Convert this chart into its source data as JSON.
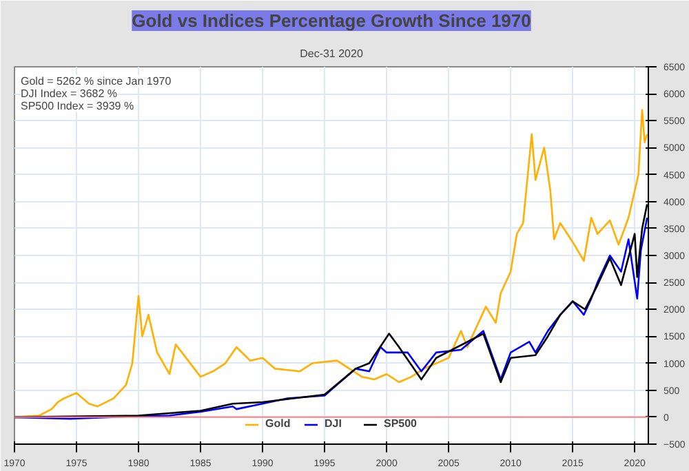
{
  "chart_data": {
    "type": "line",
    "title": "Gold vs Indices Percentage Growth Since 1970",
    "subtitle": "Dec-31 2020",
    "annotations": [
      "Gold = 5262 % since Jan 1970",
      "DJI Index = 3682 %",
      "SP500 Index = 3939 %"
    ],
    "xlim": [
      1970,
      2021.1
    ],
    "xticks": [
      1970,
      1975,
      1980,
      1985,
      1990,
      1995,
      2000,
      2005,
      2010,
      2015,
      2020
    ],
    "ylim": [
      -500,
      6500
    ],
    "yticks": [
      -500,
      0,
      500,
      1000,
      1500,
      2000,
      2500,
      3000,
      3500,
      4000,
      4500,
      5000,
      5500,
      6000,
      6500
    ],
    "grid": true,
    "legend": "bottom",
    "ref_lines": [
      {
        "axis": "y",
        "value": 0,
        "color": "#ff8080"
      }
    ],
    "series": [
      {
        "name": "Gold",
        "color": "#ffb000",
        "x": [
          1970,
          1972,
          1973,
          1973.5,
          1974,
          1975,
          1976,
          1976.7,
          1978,
          1979,
          1979.5,
          1980.0,
          1980.3,
          1980.8,
          1981.5,
          1982.5,
          1983,
          1984,
          1985,
          1986,
          1987,
          1987.9,
          1989,
          1990,
          1991,
          1993,
          1994,
          1996,
          1997,
          1998,
          1999,
          2000,
          2001,
          2002,
          2003,
          2004,
          2005,
          2006,
          2006.5,
          2007,
          2008.0,
          2008.8,
          2009.2,
          2010,
          2010.5,
          2011,
          2011.7,
          2012,
          2012.7,
          2013.2,
          2013.5,
          2014,
          2015,
          2015.9,
          2016.5,
          2017,
          2018,
          2018.7,
          2019.5,
          2020.3,
          2020.6,
          2020.8,
          2021
        ],
        "values": [
          0,
          30,
          150,
          280,
          350,
          450,
          250,
          200,
          350,
          600,
          1000,
          2250,
          1500,
          1900,
          1200,
          800,
          1350,
          1050,
          750,
          850,
          1000,
          1300,
          1050,
          1100,
          900,
          850,
          1000,
          1050,
          900,
          750,
          700,
          800,
          650,
          750,
          900,
          1000,
          1100,
          1600,
          1300,
          1550,
          2050,
          1750,
          2300,
          2700,
          3400,
          3600,
          5250,
          4400,
          5000,
          4200,
          3300,
          3600,
          3250,
          2900,
          3700,
          3400,
          3650,
          3200,
          3700,
          4500,
          5700,
          5100,
          5250
        ]
      },
      {
        "name": "DJI",
        "color": "#0000ff",
        "x": [
          1970,
          1974.5,
          1980,
          1982.5,
          1985,
          1987.6,
          1987.9,
          1990,
          1992,
          1995,
          1996,
          1997.5,
          1998.6,
          1999.5,
          2000,
          2001.7,
          2002.8,
          2004,
          2006,
          2007.8,
          2009.2,
          2010,
          2011.5,
          2012,
          2013,
          2014,
          2015,
          2015.9,
          2016.5,
          2017,
          2018,
          2018.9,
          2019.5,
          2020.2,
          2020.5,
          2021
        ],
        "values": [
          0,
          -30,
          20,
          30,
          100,
          200,
          150,
          250,
          350,
          400,
          600,
          900,
          850,
          1300,
          1200,
          1200,
          850,
          1200,
          1250,
          1600,
          700,
          1200,
          1400,
          1200,
          1600,
          1900,
          2150,
          1900,
          2200,
          2500,
          3000,
          2700,
          3300,
          2200,
          3100,
          3700
        ]
      },
      {
        "name": "SP500",
        "color": "#000000",
        "x": [
          1970,
          1980,
          1985,
          1987.6,
          1990,
          1995,
          1997.5,
          1998.6,
          2000.2,
          2001,
          2002.8,
          2004,
          2007.8,
          2009.2,
          2010,
          2012,
          2013,
          2014,
          2015,
          2016,
          2017,
          2018,
          2018.9,
          2020,
          2020.2,
          2020.6,
          2021
        ],
        "values": [
          0,
          30,
          120,
          250,
          280,
          420,
          900,
          1000,
          1550,
          1300,
          700,
          1100,
          1550,
          650,
          1100,
          1150,
          1500,
          1900,
          2150,
          2000,
          2450,
          2950,
          2450,
          3400,
          2600,
          3500,
          3950
        ]
      }
    ]
  }
}
